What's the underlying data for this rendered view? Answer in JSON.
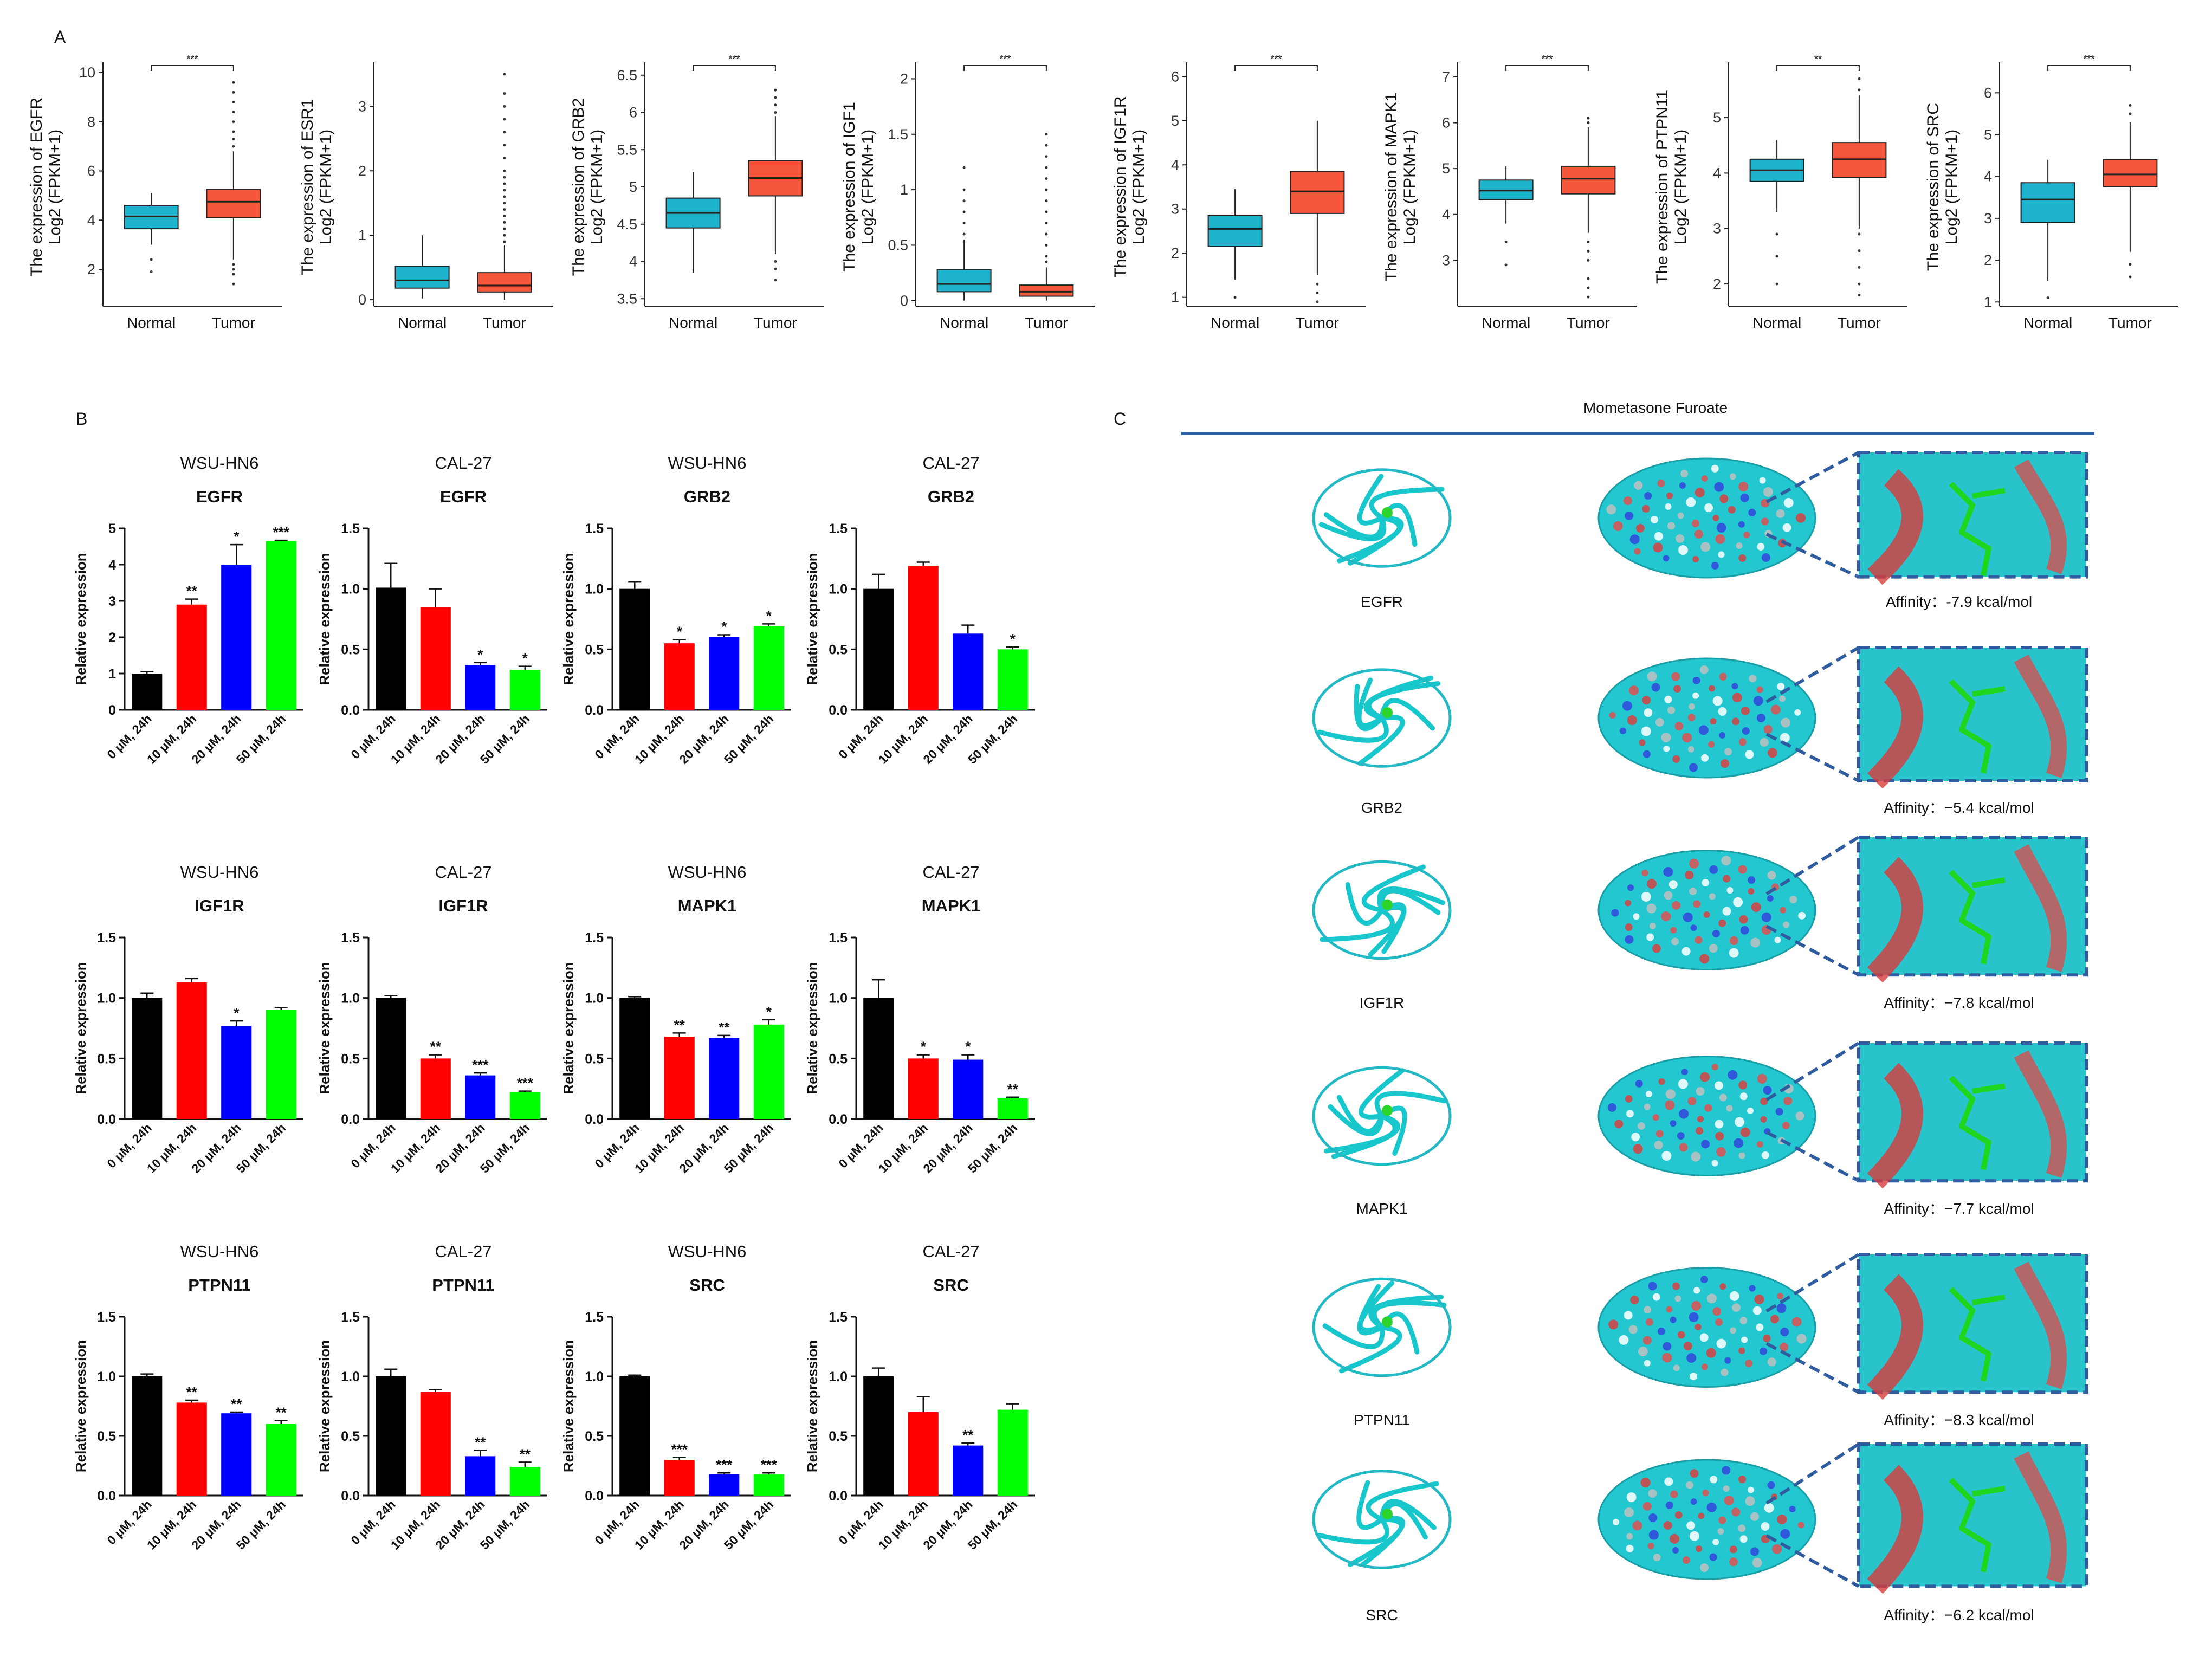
{
  "figure": {
    "panel_labels": [
      "A",
      "B",
      "C"
    ],
    "colors": {
      "normal_box": "#1eb3cc",
      "tumor_box": "#f4563c",
      "bar_control": "#000000",
      "bar_10": "#ff0000",
      "bar_20": "#0000ff",
      "bar_50": "#00ff00",
      "docking_rule": "#2e5c9e",
      "dash_box": "#2e5c9e"
    }
  },
  "chart_data": [
    {
      "type": "box",
      "panel": "A",
      "gene": "EGFR",
      "ylabel_line1": "The expression of EGFR",
      "ylabel_line2": "Log2 (FPKM+1)",
      "categories": [
        "Normal",
        "Tumor"
      ],
      "ylim": [
        0.5,
        10.2
      ],
      "yticks": [
        2,
        4,
        6,
        8,
        10
      ],
      "significance": "***",
      "boxes": [
        {
          "group": "Normal",
          "whisker_low": 3.0,
          "q1": 3.65,
          "median": 4.15,
          "q3": 4.6,
          "whisker_high": 5.1,
          "outliers": [
            2.4,
            1.9
          ]
        },
        {
          "group": "Tumor",
          "whisker_low": 2.4,
          "q1": 4.1,
          "median": 4.75,
          "q3": 5.25,
          "whisker_high": 6.8,
          "outliers": [
            7.0,
            7.3,
            7.6,
            8.0,
            8.4,
            8.8,
            9.2,
            9.6,
            2.2,
            2.0,
            1.8,
            1.4
          ]
        }
      ]
    },
    {
      "type": "box",
      "panel": "A",
      "gene": "ESR1",
      "ylabel_line1": "The expression of ESR1",
      "ylabel_line2": "Log2 (FPKM+1)",
      "categories": [
        "Normal",
        "Tumor"
      ],
      "ylim": [
        -0.1,
        3.6
      ],
      "yticks": [
        0,
        1,
        2,
        3
      ],
      "significance": "",
      "boxes": [
        {
          "group": "Normal",
          "whisker_low": 0.02,
          "q1": 0.18,
          "median": 0.3,
          "q3": 0.52,
          "whisker_high": 1.0,
          "outliers": []
        },
        {
          "group": "Tumor",
          "whisker_low": 0.0,
          "q1": 0.12,
          "median": 0.22,
          "q3": 0.42,
          "whisker_high": 0.85,
          "outliers": [
            0.9,
            1.0,
            1.1,
            1.2,
            1.3,
            1.4,
            1.5,
            1.6,
            1.7,
            1.8,
            1.9,
            2.0,
            2.2,
            2.4,
            2.6,
            2.8,
            3.0,
            3.2,
            3.5
          ]
        }
      ]
    },
    {
      "type": "box",
      "panel": "A",
      "gene": "GRB2",
      "ylabel_line1": "The expression of GRB2",
      "ylabel_line2": "Log2 (FPKM+1)",
      "categories": [
        "Normal",
        "Tumor"
      ],
      "ylim": [
        3.4,
        6.6
      ],
      "yticks": [
        3.5,
        4.0,
        4.5,
        5.0,
        5.5,
        6.0,
        6.5
      ],
      "significance": "***",
      "boxes": [
        {
          "group": "Normal",
          "whisker_low": 3.85,
          "q1": 4.45,
          "median": 4.65,
          "q3": 4.85,
          "whisker_high": 5.2,
          "outliers": []
        },
        {
          "group": "Tumor",
          "whisker_low": 4.1,
          "q1": 4.88,
          "median": 5.12,
          "q3": 5.35,
          "whisker_high": 5.95,
          "outliers": [
            6.0,
            6.1,
            6.2,
            6.3,
            4.0,
            3.9,
            3.75
          ]
        }
      ]
    },
    {
      "type": "box",
      "panel": "A",
      "gene": "IGF1",
      "ylabel_line1": "The expression of IGF1",
      "ylabel_line2": "Log2 (FPKM+1)",
      "categories": [
        "Normal",
        "Tumor"
      ],
      "ylim": [
        -0.05,
        2.1
      ],
      "yticks": [
        0.0,
        0.5,
        1.0,
        1.5,
        2.0
      ],
      "significance": "***",
      "boxes": [
        {
          "group": "Normal",
          "whisker_low": 0.0,
          "q1": 0.08,
          "median": 0.15,
          "q3": 0.28,
          "whisker_high": 0.55,
          "outliers": [
            0.6,
            0.7,
            0.8,
            0.9,
            1.0,
            1.2
          ]
        },
        {
          "group": "Tumor",
          "whisker_low": 0.0,
          "q1": 0.04,
          "median": 0.08,
          "q3": 0.14,
          "whisker_high": 0.3,
          "outliers": [
            0.35,
            0.4,
            0.5,
            0.6,
            0.7,
            0.8,
            0.9,
            1.0,
            1.1,
            1.2,
            1.3,
            1.4,
            1.5
          ]
        }
      ]
    },
    {
      "type": "box",
      "panel": "A",
      "gene": "IGF1R",
      "ylabel_line1": "The expression of IGF1R",
      "ylabel_line2": "Log2 (FPKM+1)",
      "categories": [
        "Normal",
        "Tumor"
      ],
      "ylim": [
        0.8,
        6.2
      ],
      "yticks": [
        1,
        2,
        3,
        4,
        5,
        6
      ],
      "significance": "***",
      "boxes": [
        {
          "group": "Normal",
          "whisker_low": 1.4,
          "q1": 2.15,
          "median": 2.55,
          "q3": 2.85,
          "whisker_high": 3.45,
          "outliers": [
            1.0
          ]
        },
        {
          "group": "Tumor",
          "whisker_low": 1.5,
          "q1": 2.9,
          "median": 3.4,
          "q3": 3.85,
          "whisker_high": 5.0,
          "outliers": [
            1.3,
            1.1,
            0.9
          ]
        }
      ]
    },
    {
      "type": "box",
      "panel": "A",
      "gene": "MAPK1",
      "ylabel_line1": "The expression of MAPK1",
      "ylabel_line2": "Log2 (FPKM+1)",
      "categories": [
        "Normal",
        "Tumor"
      ],
      "ylim": [
        2.0,
        7.2
      ],
      "yticks": [
        3,
        4,
        5,
        6,
        7
      ],
      "significance": "***",
      "boxes": [
        {
          "group": "Normal",
          "whisker_low": 3.8,
          "q1": 4.32,
          "median": 4.52,
          "q3": 4.75,
          "whisker_high": 5.05,
          "outliers": [
            3.4,
            2.9
          ]
        },
        {
          "group": "Tumor",
          "whisker_low": 3.6,
          "q1": 4.45,
          "median": 4.78,
          "q3": 5.05,
          "whisker_high": 5.9,
          "outliers": [
            6.0,
            6.1,
            3.4,
            3.2,
            3.0,
            2.6,
            2.4,
            2.2
          ]
        }
      ]
    },
    {
      "type": "box",
      "panel": "A",
      "gene": "PTPN11",
      "ylabel_line1": "The expression of PTPN11",
      "ylabel_line2": "Log2 (FPKM+1)",
      "categories": [
        "Normal",
        "Tumor"
      ],
      "ylim": [
        1.6,
        5.9
      ],
      "yticks": [
        2,
        3,
        4,
        5
      ],
      "significance": "**",
      "boxes": [
        {
          "group": "Normal",
          "whisker_low": 3.3,
          "q1": 3.85,
          "median": 4.05,
          "q3": 4.25,
          "whisker_high": 4.6,
          "outliers": [
            2.9,
            2.5,
            2.0
          ]
        },
        {
          "group": "Tumor",
          "whisker_low": 3.0,
          "q1": 3.92,
          "median": 4.25,
          "q3": 4.55,
          "whisker_high": 5.4,
          "outliers": [
            5.5,
            5.7,
            2.9,
            2.6,
            2.3,
            2.0,
            1.8
          ]
        }
      ]
    },
    {
      "type": "box",
      "panel": "A",
      "gene": "SRC",
      "ylabel_line1": "The expression of SRC",
      "ylabel_line2": "Log2 (FPKM+1)",
      "categories": [
        "Normal",
        "Tumor"
      ],
      "ylim": [
        0.9,
        6.6
      ],
      "yticks": [
        1,
        2,
        3,
        4,
        5,
        6
      ],
      "significance": "***",
      "boxes": [
        {
          "group": "Normal",
          "whisker_low": 1.5,
          "q1": 2.9,
          "median": 3.45,
          "q3": 3.85,
          "whisker_high": 4.4,
          "outliers": [
            1.1
          ]
        },
        {
          "group": "Tumor",
          "whisker_low": 2.2,
          "q1": 3.75,
          "median": 4.05,
          "q3": 4.4,
          "whisker_high": 5.3,
          "outliers": [
            5.5,
            5.7,
            1.9,
            1.6
          ]
        }
      ]
    },
    {
      "type": "bar",
      "panel": "B",
      "cell_line": "WSU-HN6",
      "gene": "EGFR",
      "ylabel": "Relative expression",
      "ylim": [
        0,
        5
      ],
      "yticks": [
        "0",
        "1",
        "2",
        "3",
        "4",
        "5"
      ],
      "categories": [
        "0 μM, 24h",
        "10 μM, 24h",
        "20 μM, 24h",
        "50 μM, 24h"
      ],
      "values": [
        1.0,
        2.9,
        4.0,
        4.65
      ],
      "errors": [
        0.05,
        0.15,
        0.55,
        0.02
      ],
      "significance": [
        "",
        "**",
        "*",
        "***"
      ]
    },
    {
      "type": "bar",
      "panel": "B",
      "cell_line": "CAL-27",
      "gene": "EGFR",
      "ylabel": "Relative expression",
      "ylim": [
        0,
        1.5
      ],
      "yticks": [
        "0.0",
        "0.5",
        "1.0",
        "1.5"
      ],
      "categories": [
        "0 μM, 24h",
        "10 μM, 24h",
        "20 μM, 24h",
        "50 μM, 24h"
      ],
      "values": [
        1.01,
        0.85,
        0.37,
        0.33
      ],
      "errors": [
        0.2,
        0.15,
        0.02,
        0.03
      ],
      "significance": [
        "",
        "",
        "*",
        "*"
      ]
    },
    {
      "type": "bar",
      "panel": "B",
      "cell_line": "WSU-HN6",
      "gene": "GRB2",
      "ylabel": "Relative expression",
      "ylim": [
        0,
        1.5
      ],
      "yticks": [
        "0.0",
        "0.5",
        "1.0",
        "1.5"
      ],
      "categories": [
        "0 μM, 24h",
        "10 μM, 24h",
        "20 μM, 24h",
        "50 μM, 24h"
      ],
      "values": [
        1.0,
        0.55,
        0.6,
        0.69
      ],
      "errors": [
        0.06,
        0.03,
        0.02,
        0.02
      ],
      "significance": [
        "",
        "*",
        "*",
        "*"
      ]
    },
    {
      "type": "bar",
      "panel": "B",
      "cell_line": "CAL-27",
      "gene": "GRB2",
      "ylabel": "Relative expression",
      "ylim": [
        0,
        1.5
      ],
      "yticks": [
        "0.0",
        "0.5",
        "1.0",
        "1.5"
      ],
      "categories": [
        "0 μM, 24h",
        "10 μM, 24h",
        "20 μM, 24h",
        "50 μM, 24h"
      ],
      "values": [
        1.0,
        1.19,
        0.63,
        0.5
      ],
      "errors": [
        0.12,
        0.03,
        0.07,
        0.02
      ],
      "significance": [
        "",
        "",
        "",
        "*"
      ]
    },
    {
      "type": "bar",
      "panel": "B",
      "cell_line": "WSU-HN6",
      "gene": "IGF1R",
      "ylabel": "Relative expression",
      "ylim": [
        0,
        1.5
      ],
      "yticks": [
        "0.0",
        "0.5",
        "1.0",
        "1.5"
      ],
      "categories": [
        "0 μM, 24h",
        "10 μM, 24h",
        "20 μM, 24h",
        "50 μM, 24h"
      ],
      "values": [
        1.0,
        1.13,
        0.77,
        0.9
      ],
      "errors": [
        0.04,
        0.03,
        0.04,
        0.02
      ],
      "significance": [
        "",
        "",
        "*",
        ""
      ]
    },
    {
      "type": "bar",
      "panel": "B",
      "cell_line": "CAL-27",
      "gene": "IGF1R",
      "ylabel": "Relative expression",
      "ylim": [
        0,
        1.5
      ],
      "yticks": [
        "0.0",
        "0.5",
        "1.0",
        "1.5"
      ],
      "categories": [
        "0 μM, 24h",
        "10 μM, 24h",
        "20 μM, 24h",
        "50 μM, 24h"
      ],
      "values": [
        1.0,
        0.5,
        0.36,
        0.22
      ],
      "errors": [
        0.02,
        0.03,
        0.02,
        0.01
      ],
      "significance": [
        "",
        "**",
        "***",
        "***"
      ]
    },
    {
      "type": "bar",
      "panel": "B",
      "cell_line": "WSU-HN6",
      "gene": "MAPK1",
      "ylabel": "Relative expression",
      "ylim": [
        0,
        1.5
      ],
      "yticks": [
        "0.0",
        "0.5",
        "1.0",
        "1.5"
      ],
      "categories": [
        "0 μM, 24h",
        "10 μM, 24h",
        "20 μM, 24h",
        "50 μM, 24h"
      ],
      "values": [
        1.0,
        0.68,
        0.67,
        0.78
      ],
      "errors": [
        0.01,
        0.03,
        0.02,
        0.04
      ],
      "significance": [
        "",
        "**",
        "**",
        "*"
      ]
    },
    {
      "type": "bar",
      "panel": "B",
      "cell_line": "CAL-27",
      "gene": "MAPK1",
      "ylabel": "Relative expression",
      "ylim": [
        0,
        1.5
      ],
      "yticks": [
        "0.0",
        "0.5",
        "1.0",
        "1.5"
      ],
      "categories": [
        "0 μM, 24h",
        "10 μM, 24h",
        "20 μM, 24h",
        "50 μM, 24h"
      ],
      "values": [
        1.0,
        0.5,
        0.49,
        0.17
      ],
      "errors": [
        0.15,
        0.03,
        0.04,
        0.01
      ],
      "significance": [
        "",
        "*",
        "*",
        "**"
      ]
    },
    {
      "type": "bar",
      "panel": "B",
      "cell_line": "WSU-HN6",
      "gene": "PTPN11",
      "ylabel": "Relative expression",
      "ylim": [
        0,
        1.5
      ],
      "yticks": [
        "0.0",
        "0.5",
        "1.0",
        "1.5"
      ],
      "categories": [
        "0 μM, 24h",
        "10 μM, 24h",
        "20 μM, 24h",
        "50 μM, 24h"
      ],
      "values": [
        1.0,
        0.78,
        0.69,
        0.6
      ],
      "errors": [
        0.02,
        0.02,
        0.01,
        0.03
      ],
      "significance": [
        "",
        "**",
        "**",
        "**"
      ]
    },
    {
      "type": "bar",
      "panel": "B",
      "cell_line": "CAL-27",
      "gene": "PTPN11",
      "ylabel": "Relative expression",
      "ylim": [
        0,
        1.5
      ],
      "yticks": [
        "0.0",
        "0.5",
        "1.0",
        "1.5"
      ],
      "categories": [
        "0 μM, 24h",
        "10 μM, 24h",
        "20 μM, 24h",
        "50 μM, 24h"
      ],
      "values": [
        1.0,
        0.87,
        0.33,
        0.24
      ],
      "errors": [
        0.06,
        0.02,
        0.05,
        0.04
      ],
      "significance": [
        "",
        "",
        "**",
        "**"
      ]
    },
    {
      "type": "bar",
      "panel": "B",
      "cell_line": "WSU-HN6",
      "gene": "SRC",
      "ylabel": "Relative expression",
      "ylim": [
        0,
        1.5
      ],
      "yticks": [
        "0.0",
        "0.5",
        "1.0",
        "1.5"
      ],
      "categories": [
        "0 μM, 24h",
        "10 μM, 24h",
        "20 μM, 24h",
        "50 μM, 24h"
      ],
      "values": [
        1.0,
        0.3,
        0.18,
        0.18
      ],
      "errors": [
        0.01,
        0.02,
        0.01,
        0.01
      ],
      "significance": [
        "",
        "***",
        "***",
        "***"
      ]
    },
    {
      "type": "bar",
      "panel": "B",
      "cell_line": "CAL-27",
      "gene": "SRC",
      "ylabel": "Relative expression",
      "ylim": [
        0,
        1.5
      ],
      "yticks": [
        "0.0",
        "0.5",
        "1.0",
        "1.5"
      ],
      "categories": [
        "0 μM, 24h",
        "10 μM, 24h",
        "20 μM, 24h",
        "50 μM, 24h"
      ],
      "values": [
        1.0,
        0.7,
        0.42,
        0.72
      ],
      "errors": [
        0.07,
        0.13,
        0.02,
        0.05
      ],
      "significance": [
        "",
        "",
        "**",
        ""
      ]
    }
  ],
  "docking": {
    "title": "Mometasone Furoate",
    "rows": [
      {
        "protein": "EGFR",
        "affinity": "Affinity：-7.9 kcal/mol"
      },
      {
        "protein": "GRB2",
        "affinity": "Affinity：−5.4 kcal/mol"
      },
      {
        "protein": "IGF1R",
        "affinity": "Affinity：−7.8 kcal/mol"
      },
      {
        "protein": "MAPK1",
        "affinity": "Affinity：−7.7 kcal/mol"
      },
      {
        "protein": "PTPN11",
        "affinity": "Affinity：−8.3 kcal/mol"
      },
      {
        "protein": "SRC",
        "affinity": "Affinity：−6.2 kcal/mol"
      }
    ]
  }
}
